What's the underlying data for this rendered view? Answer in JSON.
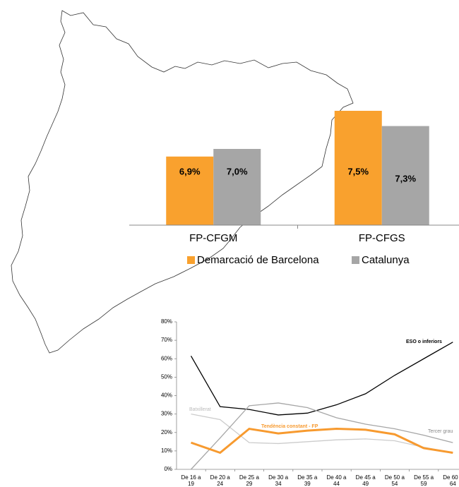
{
  "chart_data": [
    {
      "type": "bar",
      "categories": [
        "FP-CFGM",
        "FP-CFGS"
      ],
      "series": [
        {
          "name": "Demarcació de Barcelona",
          "color": "#f9a12e",
          "values": [
            6.9,
            7.5
          ],
          "value_labels": [
            "6,9%",
            "7,5%"
          ]
        },
        {
          "name": "Catalunya",
          "color": "#a6a6a6",
          "values": [
            7.0,
            7.3
          ],
          "value_labels": [
            "7,0%",
            "7,3%"
          ]
        }
      ],
      "ylim": [
        6,
        8
      ],
      "legend": "bottom"
    },
    {
      "type": "line",
      "categories": [
        "De 16 a 19",
        "De 20 a 24",
        "De 25 a 29",
        "De 30 a 34",
        "De 35 a 39",
        "De 40 a 44",
        "De 45 a 49",
        "De 50 a 54",
        "De 55 a 59",
        "De 60 a 64"
      ],
      "series": [
        {
          "name": "ESO o inferiors",
          "color": "#000000",
          "values": [
            61.5,
            34,
            32.5,
            29.5,
            30.5,
            35,
            41,
            51,
            60,
            69
          ]
        },
        {
          "name": "Batxillerat",
          "color": "#cccccc",
          "values": [
            30,
            27,
            14.5,
            14,
            15,
            16,
            16.5,
            15.5,
            12,
            9
          ]
        },
        {
          "name": "Tercer grau",
          "color": "#a6a6a6",
          "values": [
            0,
            17,
            34.5,
            36,
            33.5,
            28,
            24.5,
            22,
            18.5,
            14.5
          ]
        },
        {
          "name": "Tendència constant - FP",
          "color": "#f79a2f",
          "values": [
            14.5,
            9,
            22,
            19.5,
            21,
            22,
            21.5,
            19,
            11.5,
            9
          ]
        }
      ],
      "ylim": [
        0,
        80
      ],
      "yticks": [
        {
          "value": 0,
          "label": "0%"
        },
        {
          "value": 10,
          "label": "10%"
        },
        {
          "value": 20,
          "label": "20%"
        },
        {
          "value": 30,
          "label": "30%"
        },
        {
          "value": 40,
          "label": "40%"
        },
        {
          "value": 50,
          "label": "50%"
        },
        {
          "value": 60,
          "label": "60%"
        },
        {
          "value": 70,
          "label": "70%"
        },
        {
          "value": 80,
          "label": "80%"
        }
      ]
    }
  ]
}
